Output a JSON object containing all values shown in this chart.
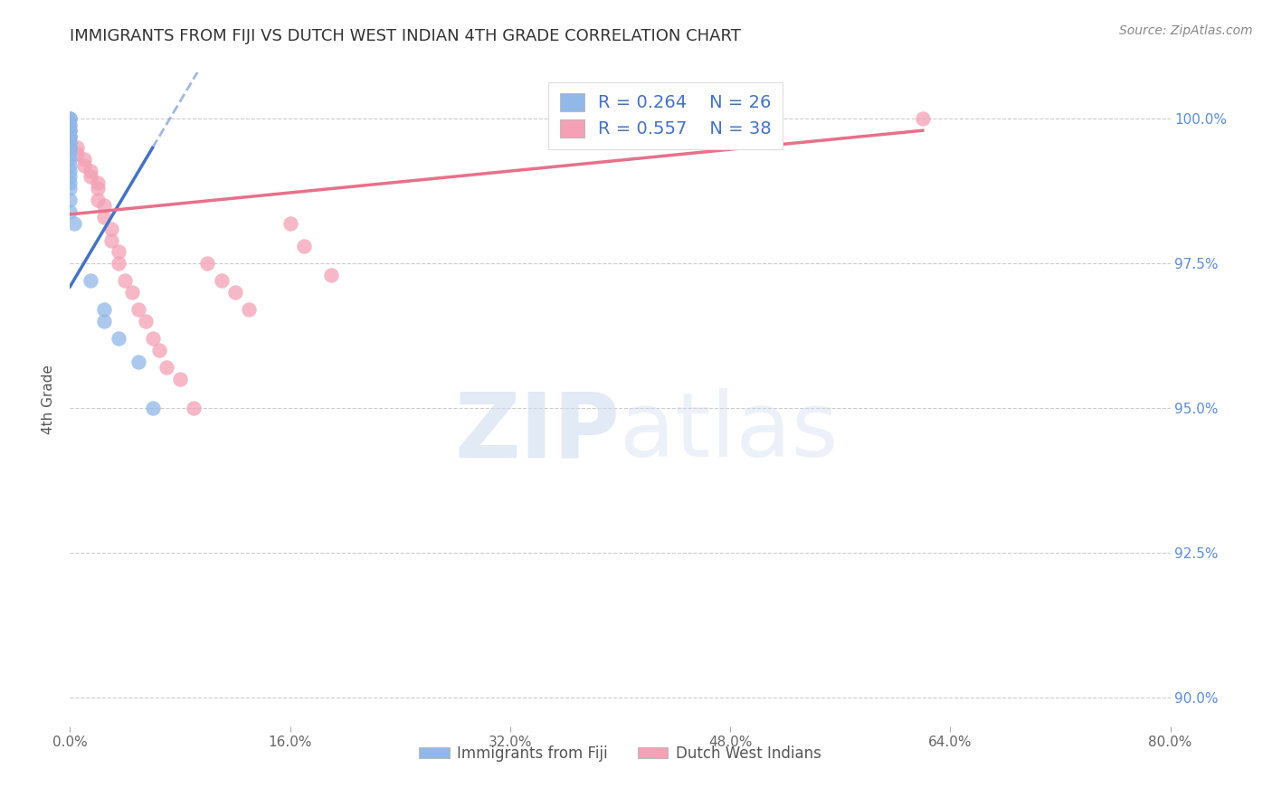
{
  "title": "IMMIGRANTS FROM FIJI VS DUTCH WEST INDIAN 4TH GRADE CORRELATION CHART",
  "source": "Source: ZipAtlas.com",
  "ylabel": "4th Grade",
  "xlim": [
    0.0,
    80.0
  ],
  "ylim": [
    89.5,
    100.8
  ],
  "yticks": [
    90.0,
    92.5,
    95.0,
    97.5,
    100.0
  ],
  "xticks": [
    0.0,
    16.0,
    32.0,
    48.0,
    64.0,
    80.0
  ],
  "fiji_R": 0.264,
  "fiji_N": 26,
  "dutch_R": 0.557,
  "dutch_N": 38,
  "fiji_color": "#90B8E8",
  "dutch_color": "#F4A0B5",
  "fiji_line_color": "#4472C4",
  "dutch_line_color": "#E8708A",
  "watermark_color": "#D0DCF0",
  "background_color": "#FFFFFF",
  "fiji_x": [
    0.0,
    0.0,
    0.0,
    0.0,
    0.0,
    0.0,
    0.0,
    0.0,
    0.0,
    0.0,
    0.0,
    0.0,
    0.0,
    0.0,
    0.0,
    0.0,
    0.0,
    0.0,
    0.0,
    0.3,
    1.5,
    2.5,
    2.5,
    3.5,
    5.0,
    6.0
  ],
  "fiji_y": [
    100.0,
    100.0,
    99.9,
    99.8,
    99.8,
    99.7,
    99.7,
    99.6,
    99.5,
    99.5,
    99.4,
    99.3,
    99.2,
    99.1,
    99.0,
    98.9,
    98.8,
    98.6,
    98.4,
    98.2,
    97.2,
    96.7,
    96.5,
    96.2,
    95.8,
    95.0
  ],
  "dutch_x": [
    0.0,
    0.0,
    0.0,
    0.0,
    0.0,
    0.0,
    0.5,
    0.5,
    1.0,
    1.0,
    1.5,
    1.5,
    2.0,
    2.0,
    2.0,
    2.5,
    2.5,
    3.0,
    3.0,
    3.5,
    3.5,
    4.0,
    4.5,
    5.0,
    5.5,
    6.0,
    6.5,
    7.0,
    8.0,
    9.0,
    10.0,
    11.0,
    12.0,
    13.0,
    16.0,
    17.0,
    19.0,
    62.0
  ],
  "dutch_y": [
    100.0,
    99.9,
    99.8,
    99.7,
    99.6,
    99.5,
    99.5,
    99.4,
    99.3,
    99.2,
    99.1,
    99.0,
    98.9,
    98.8,
    98.6,
    98.5,
    98.3,
    98.1,
    97.9,
    97.7,
    97.5,
    97.2,
    97.0,
    96.7,
    96.5,
    96.2,
    96.0,
    95.7,
    95.5,
    95.0,
    97.5,
    97.2,
    97.0,
    96.7,
    98.2,
    97.8,
    97.3,
    100.0
  ]
}
